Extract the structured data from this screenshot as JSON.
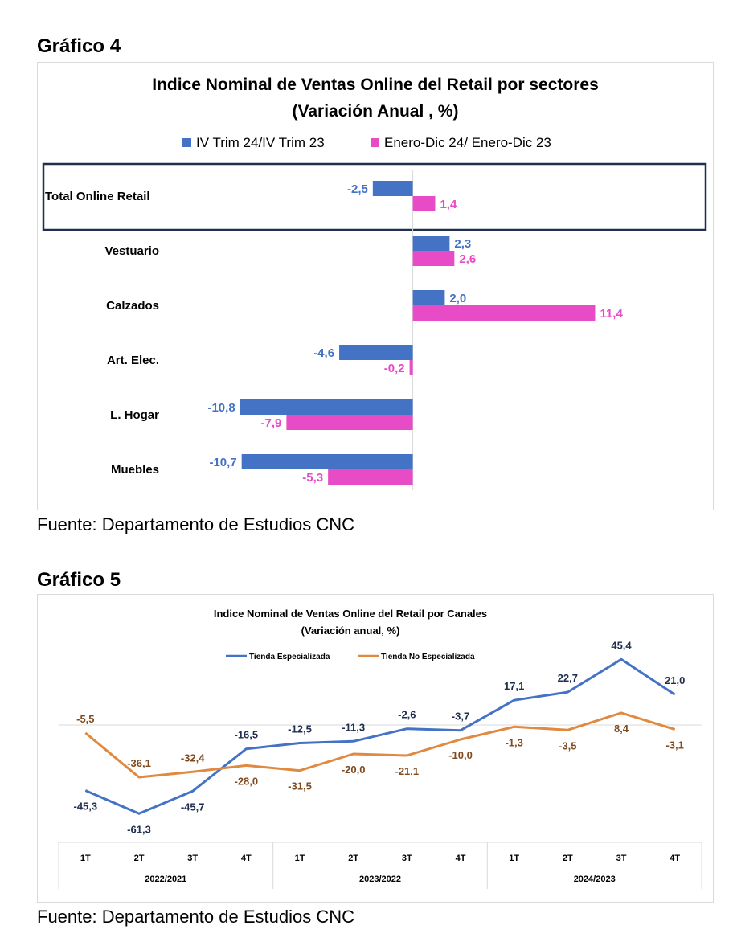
{
  "sections": [
    {
      "heading": "Gráfico 4",
      "source": "Fuente: Departamento de Estudios CNC"
    },
    {
      "heading": "Gráfico 5",
      "source": "Fuente: Departamento de Estudios CNC"
    }
  ],
  "colors": {
    "blue": "#4472C4",
    "magenta": "#E84BC6",
    "orange": "#E08940",
    "dark_navy": "#1F2D4E",
    "brown_label": "#7F4A1E"
  },
  "chart_data": [
    {
      "type": "bar",
      "orientation": "horizontal",
      "title": "Indice Nominal de Ventas Online del Retail  por sectores",
      "subtitle": "(Variación Anual , %)",
      "categories": [
        "Total Online Retail",
        "Vestuario",
        "Calzados",
        "Art. Elec.",
        "L. Hogar",
        "Muebles"
      ],
      "series": [
        {
          "name": "IV Trim 24/IV Trim 23",
          "values": [
            -2.5,
            2.3,
            2.0,
            -4.6,
            -10.8,
            -10.7
          ],
          "labels": [
            "-2,5",
            "2,3",
            "2,0",
            "-4,6",
            "-10,8",
            "-10,7"
          ]
        },
        {
          "name": "Enero-Dic 24/ Enero-Dic 23",
          "values": [
            1.4,
            2.6,
            11.4,
            -0.2,
            -7.9,
            -5.3
          ],
          "labels": [
            "1,4",
            "2,6",
            "11,4",
            "-0,2",
            "-7,9",
            "-5,3"
          ]
        }
      ],
      "highlighted_category": "Total Online Retail",
      "legend_position": "top",
      "grid": false
    },
    {
      "type": "line",
      "title": "Indice Nominal de Ventas Online del Retail por Canales",
      "subtitle": "(Variación  anual, %)",
      "categories": [
        "1T",
        "2T",
        "3T",
        "4T",
        "1T",
        "2T",
        "3T",
        "4T",
        "1T",
        "2T",
        "3T",
        "4T"
      ],
      "groups": [
        {
          "label": "2022/2021"
        },
        {
          "label": "2023/2022"
        },
        {
          "label": "2024/2023"
        }
      ],
      "series": [
        {
          "name": "Tienda Especializada",
          "values": [
            -45.3,
            -61.3,
            -45.7,
            -16.5,
            -12.5,
            -11.3,
            -2.6,
            -3.7,
            17.1,
            22.7,
            45.4,
            21.0
          ],
          "labels": [
            "-45,3",
            "-61,3",
            "-45,7",
            "-16,5",
            "-12,5",
            "-11,3",
            "-2,6",
            "-3,7",
            "17,1",
            "22,7",
            "45,4",
            "21,0"
          ]
        },
        {
          "name": "Tienda No Especializada",
          "values": [
            -5.5,
            -36.1,
            -32.4,
            -28.0,
            -31.5,
            -20.0,
            -21.1,
            -10.0,
            -1.3,
            -3.5,
            8.4,
            -3.1
          ],
          "labels": [
            "-5,5",
            "-36,1",
            "-32,4",
            "-28,0",
            "-31,5",
            "-20,0",
            "-21,1",
            "-10,0",
            "-1,3",
            "-3,5",
            "8,4",
            "-3,1"
          ]
        }
      ],
      "legend_position": "top",
      "grid": false
    }
  ]
}
